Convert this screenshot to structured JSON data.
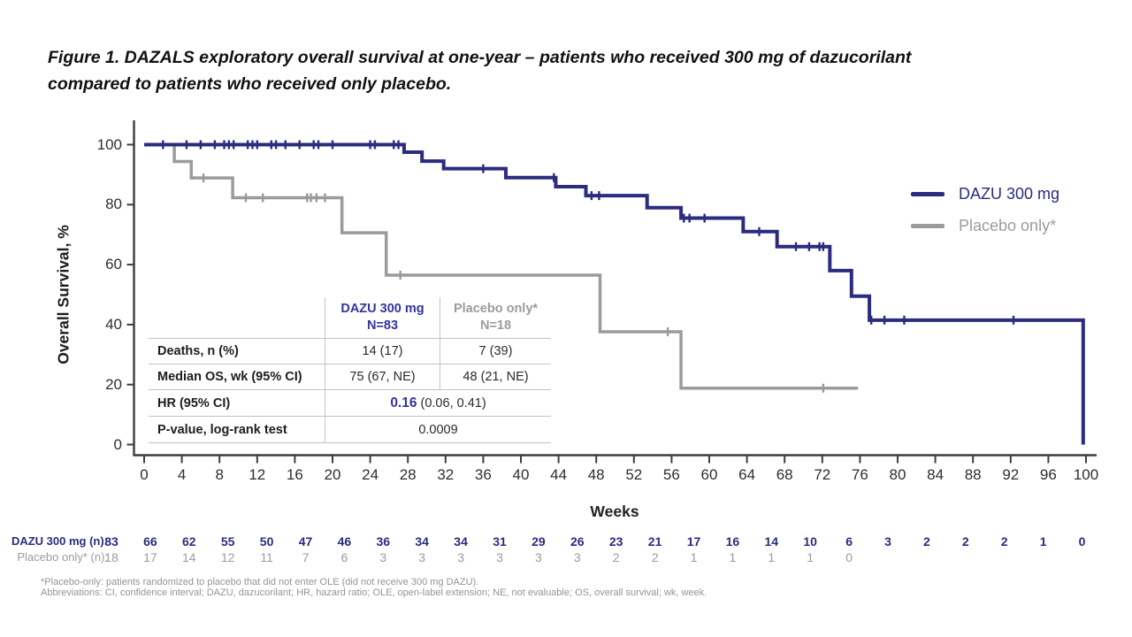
{
  "figure_title": {
    "line1": "Figure 1. DAZALS exploratory overall survival at one-year – patients who received 300 mg of dazucorilant",
    "line2": "compared to patients who received only placebo."
  },
  "chart_data": {
    "type": "line",
    "subtype": "kaplan-meier-step",
    "title": "",
    "xlabel": "Weeks",
    "ylabel": "Overall Survival, %",
    "xlim": [
      0,
      100
    ],
    "ylim": [
      0,
      100
    ],
    "grid": "off",
    "legend_position": "right",
    "x_ticks": [
      0,
      4,
      8,
      12,
      16,
      20,
      24,
      28,
      32,
      36,
      40,
      44,
      48,
      52,
      56,
      60,
      64,
      68,
      72,
      76,
      80,
      84,
      88,
      92,
      96,
      100
    ],
    "y_ticks": [
      0,
      20,
      40,
      60,
      80,
      100
    ],
    "series": [
      {
        "id": "dazu-300",
        "name": "DAZU 300 mg",
        "color": "#2b2b80",
        "n": 83,
        "steps": [
          [
            27.6,
            97.5
          ],
          [
            29.5,
            94.5
          ],
          [
            31.8,
            92
          ],
          [
            38.4,
            89
          ],
          [
            43.7,
            86
          ],
          [
            46.9,
            83
          ],
          [
            53.4,
            79
          ],
          [
            57,
            75.5
          ],
          [
            63.6,
            71
          ],
          [
            67.2,
            66
          ],
          [
            72.8,
            58
          ],
          [
            75.1,
            49.5
          ],
          [
            77,
            41.5
          ],
          [
            99.7,
            0
          ]
        ],
        "censors": [
          [
            2,
            100
          ],
          [
            4.5,
            100
          ],
          [
            6,
            100
          ],
          [
            7.5,
            100
          ],
          [
            8.5,
            100
          ],
          [
            9,
            100
          ],
          [
            9.5,
            100
          ],
          [
            11,
            100
          ],
          [
            11.5,
            100
          ],
          [
            12,
            100
          ],
          [
            13.5,
            100
          ],
          [
            14,
            100
          ],
          [
            15,
            100
          ],
          [
            16.5,
            100
          ],
          [
            18,
            100
          ],
          [
            18.5,
            100
          ],
          [
            20,
            100
          ],
          [
            24,
            100
          ],
          [
            24.5,
            100
          ],
          [
            26.5,
            100
          ],
          [
            27,
            100
          ],
          [
            36,
            92
          ],
          [
            43.5,
            89
          ],
          [
            47.5,
            83
          ],
          [
            48.3,
            83
          ],
          [
            57.3,
            75.5
          ],
          [
            57.9,
            75.5
          ],
          [
            59.5,
            75.5
          ],
          [
            65.3,
            71
          ],
          [
            69.2,
            66
          ],
          [
            70.6,
            66
          ],
          [
            71.7,
            66
          ],
          [
            72.1,
            66
          ],
          [
            77.2,
            41.5
          ],
          [
            78.6,
            41.5
          ],
          [
            80.7,
            41.5
          ],
          [
            92.3,
            41.5
          ]
        ],
        "end_week": 99.7
      },
      {
        "id": "placebo-only",
        "name": "Placebo only*",
        "color": "#9b9b9b",
        "n": 18,
        "steps": [
          [
            3.2,
            94.4
          ],
          [
            5,
            88.9
          ],
          [
            9.4,
            82.3
          ],
          [
            21,
            70.6
          ],
          [
            25.7,
            56.5
          ],
          [
            48.4,
            37.6
          ],
          [
            57,
            18.8
          ]
        ],
        "censors": [
          [
            6.3,
            88.9
          ],
          [
            10.8,
            82.3
          ],
          [
            12.6,
            82.3
          ],
          [
            17.3,
            82.3
          ],
          [
            17.7,
            82.3
          ],
          [
            18.3,
            82.3
          ],
          [
            19.2,
            82.3
          ],
          [
            27.2,
            56.5
          ],
          [
            55.6,
            37.6
          ],
          [
            72.1,
            18.8
          ]
        ],
        "end_week": 75.8
      }
    ]
  },
  "legend": {
    "items": [
      {
        "label": "DAZU 300 mg",
        "color": "#2b2b80"
      },
      {
        "label": "Placebo only*",
        "color": "#9b9b9b"
      }
    ]
  },
  "stats_table": {
    "headers": [
      {
        "line1": "DAZU 300 mg",
        "line2": "N=83"
      },
      {
        "line1": "Placebo only*",
        "line2": "N=18"
      }
    ],
    "rows": [
      {
        "label": "Deaths, n (%)",
        "dazu": "14 (17)",
        "placebo": "7 (39)"
      },
      {
        "label": "Median OS, wk (95% CI)",
        "dazu": "75 (67, NE)",
        "placebo": "48 (21, NE)"
      },
      {
        "label": "HR (95% CI)",
        "value_bold": "0.16",
        "value_rest": "(0.06, 0.41)"
      },
      {
        "label": "P-value, log-rank test",
        "value": "0.0009"
      }
    ]
  },
  "at_risk": {
    "rows": [
      {
        "label": "DAZU 300 mg (n):",
        "values": [
          83,
          66,
          62,
          55,
          50,
          47,
          46,
          36,
          34,
          34,
          31,
          29,
          26,
          23,
          21,
          17,
          16,
          14,
          10,
          6,
          3,
          2,
          2,
          2,
          1,
          0
        ]
      },
      {
        "label": "Placebo only* (n):",
        "values": [
          18,
          17,
          14,
          12,
          11,
          7,
          6,
          3,
          3,
          3,
          3,
          3,
          3,
          2,
          2,
          1,
          1,
          1,
          1,
          0
        ]
      }
    ]
  },
  "footnotes": {
    "line1": "*Placebo-only: patients randomized to placebo that did not enter OLE (did not receive 300 mg DAZU).",
    "line2": "Abbreviations: CI, confidence interval; DAZU, dazucorilant; HR, hazard ratio; OLE, open-label extension; NE, not evaluable; OS, overall survival; wk, week."
  },
  "colors": {
    "dazu_navy": "#2b2b80",
    "dazu_text": "#3333a0",
    "placebo_gray": "#9b9b9b",
    "placebo_text": "#9b9ba1",
    "axis": "#3d3d3d",
    "text_dark": "#1c1c1c",
    "muted_gray": "#949494",
    "table_border": "#c4c4c4"
  }
}
